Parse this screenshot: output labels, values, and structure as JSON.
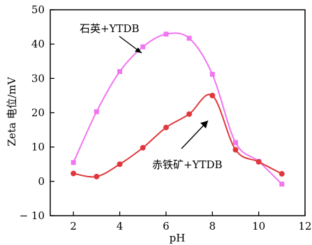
{
  "chart_data": {
    "type": "line",
    "xlabel": "pH",
    "ylabel": "Zeta 电位/mV",
    "xlim": [
      1,
      12
    ],
    "ylim": [
      -10,
      50
    ],
    "xticks": [
      2,
      4,
      6,
      8,
      10,
      12
    ],
    "yticks": [
      -10,
      0,
      10,
      20,
      30,
      40,
      50
    ],
    "ytick_labels": [
      "− 10",
      "0",
      "10",
      "20",
      "30",
      "40",
      "50"
    ],
    "grid": false,
    "series": [
      {
        "name": "石英+YTDB",
        "color": "#f075f0",
        "marker": "square",
        "x": [
          2,
          3,
          4,
          5,
          6,
          7,
          8,
          9,
          10,
          11
        ],
        "y": [
          5.5,
          20.3,
          32.0,
          39.2,
          42.9,
          41.7,
          31.2,
          11.3,
          5.8,
          -0.8
        ]
      },
      {
        "name": "赤铁矿+YTDB",
        "color": "#e0373c",
        "marker": "circle",
        "x": [
          2,
          3,
          4,
          5,
          6,
          7,
          8,
          9,
          10,
          11
        ],
        "y": [
          2.3,
          1.4,
          5.0,
          9.8,
          15.7,
          19.6,
          25.0,
          9.2,
          5.7,
          2.2
        ]
      }
    ],
    "annotations": [
      {
        "text": "石英+YTDB",
        "series": 0
      },
      {
        "text": "赤铁矿+YTDB",
        "series": 1
      }
    ]
  }
}
